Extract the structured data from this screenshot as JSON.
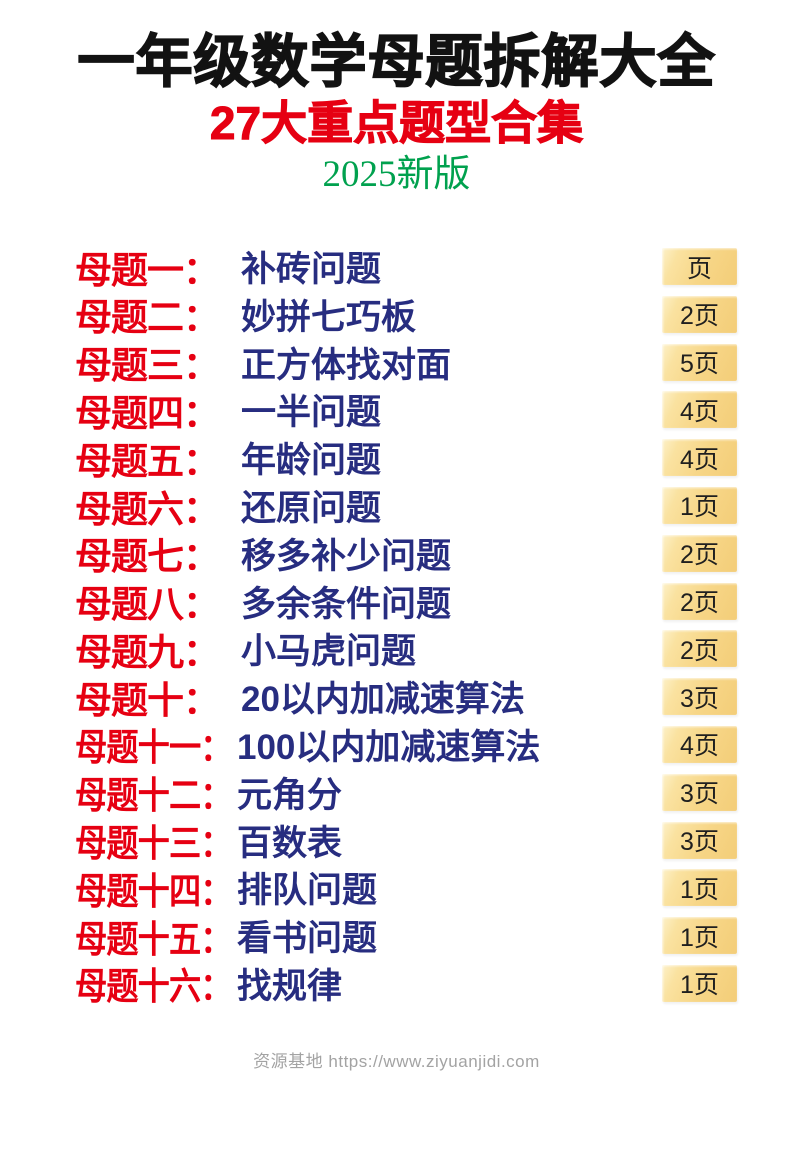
{
  "header": {
    "title": "一年级数学母题拆解大全",
    "subtitle": "27大重点题型合集",
    "edition": "2025新版"
  },
  "colors": {
    "title_black": "#121212",
    "subtitle_red": "#e60012",
    "edition_green": "#00a14e",
    "label_red": "#e60012",
    "item_blue": "#272d80",
    "badge_bg": "#f7d687",
    "badge_highlight": "#fdf1c9",
    "badge_text": "#1f1f1f",
    "footer_gray": "#a3a3a3"
  },
  "toc": {
    "items": [
      {
        "label": "母题一：",
        "title": "补砖问题",
        "pages": "页"
      },
      {
        "label": "母题二：",
        "title": "妙拼七巧板",
        "pages": "2页"
      },
      {
        "label": "母题三：",
        "title": "正方体找对面",
        "pages": "5页"
      },
      {
        "label": "母题四：",
        "title": "一半问题",
        "pages": "4页"
      },
      {
        "label": "母题五：",
        "title": "年龄问题",
        "pages": "4页"
      },
      {
        "label": "母题六：",
        "title": "还原问题",
        "pages": "1页"
      },
      {
        "label": "母题七：",
        "title": "移多补少问题",
        "pages": "2页"
      },
      {
        "label": "母题八：",
        "title": "多余条件问题",
        "pages": "2页"
      },
      {
        "label": "母题九：",
        "title": "小马虎问题",
        "pages": "2页"
      },
      {
        "label": "母题十：",
        "title": "20以内加减速算法",
        "pages": "3页"
      },
      {
        "label": "母题十一：",
        "title": "100以内加减速算法",
        "pages": "4页"
      },
      {
        "label": "母题十二：",
        "title": "元角分",
        "pages": "3页"
      },
      {
        "label": "母题十三：",
        "title": "百数表",
        "pages": "3页"
      },
      {
        "label": "母题十四：",
        "title": "排队问题",
        "pages": "1页"
      },
      {
        "label": "母题十五：",
        "title": "看书问题",
        "pages": "1页"
      },
      {
        "label": "母题十六：",
        "title": "找规律",
        "pages": "1页"
      }
    ]
  },
  "footer": {
    "credit": "资源基地 https://www.ziyuanjidi.com"
  }
}
